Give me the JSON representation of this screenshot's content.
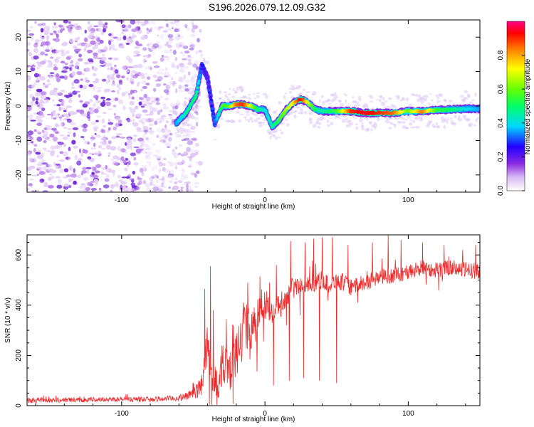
{
  "title": "S196.2026.079.12.09.G32",
  "chart_data": [
    {
      "type": "heatmap",
      "name": "spectrogram",
      "xlabel": "Height of straight line (km)",
      "ylabel": "Frequency (Hz)",
      "xlim": [
        -166,
        150
      ],
      "ylim": [
        -25,
        25
      ],
      "xticks": [
        -100,
        0,
        100
      ],
      "yticks": [
        -20,
        -10,
        0,
        10,
        20
      ],
      "colorbar": {
        "label": "Normalized spectral amplitude",
        "range": [
          0.0,
          1.0
        ],
        "ticks": [
          0.0,
          0.2,
          0.4,
          0.6,
          0.8
        ],
        "tick_labels": [
          "0.0",
          "0.2",
          "0.4",
          "0.6",
          "0.8"
        ]
      },
      "ridge": {
        "x": [
          -62,
          -55,
          -48,
          -44,
          -40,
          -35,
          -30,
          -25,
          -20,
          -15,
          -10,
          -5,
          0,
          5,
          10,
          15,
          20,
          25,
          30,
          35,
          40,
          45,
          50,
          60,
          70,
          80,
          90,
          100,
          110,
          120,
          130,
          140,
          150
        ],
        "f": [
          -5,
          -2,
          3,
          12,
          8,
          -5,
          0,
          0,
          0.5,
          0.5,
          0,
          -1,
          -1,
          -6,
          -4,
          -1,
          1,
          2,
          1,
          -1,
          -1.5,
          -1.5,
          -1.5,
          -1.5,
          -2,
          -2,
          -2,
          -1.5,
          -1.5,
          -1.2,
          -1,
          -0.8,
          -0.8
        ],
        "amp": [
          0.35,
          0.45,
          0.5,
          0.25,
          0.2,
          0.3,
          0.55,
          0.6,
          0.85,
          0.9,
          0.7,
          0.5,
          0.4,
          0.45,
          0.55,
          0.65,
          0.75,
          0.95,
          0.7,
          0.5,
          0.45,
          0.5,
          0.55,
          0.9,
          0.95,
          0.9,
          0.85,
          0.6,
          0.85,
          0.55,
          0.5,
          0.4,
          0.35
        ]
      },
      "noise_region_x": [
        -166,
        -60
      ]
    },
    {
      "type": "line",
      "name": "snr",
      "color": "#ee2a2a",
      "xlabel": "Height of straight line (km)",
      "ylabel": "SNR (10 * v/v)",
      "xlim": [
        -166,
        150
      ],
      "ylim": [
        0,
        680
      ],
      "xticks": [
        -100,
        0,
        100
      ],
      "yticks": [
        0,
        200,
        400,
        600
      ],
      "x": [
        -166,
        -140,
        -110,
        -80,
        -60,
        -50,
        -45,
        -42,
        -40,
        -38,
        -35,
        -32,
        -30,
        -25,
        -20,
        -15,
        -10,
        -5,
        0,
        5,
        10,
        15,
        18,
        20,
        25,
        30,
        35,
        40,
        45,
        50,
        55,
        60,
        70,
        80,
        90,
        100,
        110,
        120,
        130,
        140,
        150
      ],
      "y": [
        22,
        22,
        25,
        25,
        30,
        45,
        80,
        150,
        230,
        140,
        110,
        70,
        180,
        150,
        190,
        330,
        290,
        350,
        410,
        380,
        390,
        420,
        470,
        480,
        470,
        480,
        490,
        500,
        480,
        500,
        490,
        470,
        490,
        510,
        520,
        530,
        550,
        540,
        550,
        540,
        535
      ],
      "spread": [
        15,
        12,
        12,
        12,
        15,
        25,
        60,
        120,
        160,
        100,
        80,
        60,
        120,
        110,
        120,
        140,
        100,
        100,
        80,
        70,
        60,
        50,
        50,
        40,
        50,
        40,
        45,
        40,
        45,
        40,
        45,
        40,
        40,
        40,
        40,
        40,
        40,
        40,
        40,
        40,
        40
      ],
      "spikes": [
        {
          "x": -42,
          "y": 465
        },
        {
          "x": -38,
          "y": 555
        },
        {
          "x": -36,
          "y": 380
        },
        {
          "x": -22,
          "y": 320
        },
        {
          "x": -12,
          "y": 490
        },
        {
          "x": -8,
          "y": 355
        },
        {
          "x": -2,
          "y": 350
        },
        {
          "x": 8,
          "y": 560
        },
        {
          "x": 15,
          "y": 320
        },
        {
          "x": 18,
          "y": 655
        },
        {
          "x": 28,
          "y": 650
        },
        {
          "x": 34,
          "y": 665
        },
        {
          "x": 40,
          "y": 670
        },
        {
          "x": 47,
          "y": 670
        },
        {
          "x": 58,
          "y": 640
        },
        {
          "x": 75,
          "y": 650
        },
        {
          "x": 86,
          "y": 680
        },
        {
          "x": 95,
          "y": 660
        },
        {
          "x": 110,
          "y": 650
        },
        {
          "x": 125,
          "y": 640
        },
        {
          "x": 138,
          "y": 620
        },
        {
          "x": 147,
          "y": 640
        }
      ],
      "dips": [
        {
          "x": 6,
          "y": 80
        },
        {
          "x": 17,
          "y": 100
        },
        {
          "x": 27,
          "y": 110
        },
        {
          "x": 38,
          "y": 100
        },
        {
          "x": 50,
          "y": 90
        }
      ]
    }
  ]
}
